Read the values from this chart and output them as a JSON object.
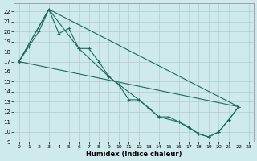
{
  "xlabel": "Humidex (Indice chaleur)",
  "bg_color": "#ceeaea",
  "grid_color": "#b0cccc",
  "line_color": "#1a6b5a",
  "xlim": [
    -0.5,
    23.5
  ],
  "ylim": [
    9,
    22.8
  ],
  "yticks": [
    9,
    10,
    11,
    12,
    13,
    14,
    15,
    16,
    17,
    18,
    19,
    20,
    21,
    22
  ],
  "xticks": [
    0,
    1,
    2,
    3,
    4,
    5,
    6,
    7,
    8,
    9,
    10,
    11,
    12,
    13,
    14,
    15,
    16,
    17,
    18,
    19,
    20,
    21,
    22,
    23
  ],
  "line1_x": [
    0,
    1,
    2,
    3,
    4,
    5,
    6,
    7,
    8,
    9,
    10,
    11,
    12,
    13,
    14,
    15,
    16,
    17,
    18,
    19,
    20,
    21,
    22
  ],
  "line1_y": [
    17.0,
    18.5,
    20.0,
    22.2,
    19.8,
    20.3,
    18.3,
    18.3,
    17.0,
    15.5,
    14.7,
    13.2,
    13.2,
    12.4,
    11.5,
    11.5,
    11.0,
    10.5,
    9.8,
    9.5,
    10.0,
    11.2,
    12.5
  ],
  "line2_x": [
    0,
    22
  ],
  "line2_y": [
    17.0,
    12.5
  ],
  "line3_x": [
    0,
    3,
    22
  ],
  "line3_y": [
    17.0,
    22.2,
    12.5
  ],
  "line4_x": [
    0,
    3,
    6,
    9,
    12,
    14,
    16,
    18,
    19,
    20,
    21,
    22
  ],
  "line4_y": [
    17.0,
    22.2,
    18.3,
    15.5,
    13.2,
    11.5,
    11.0,
    9.8,
    9.5,
    10.0,
    11.2,
    12.5
  ]
}
